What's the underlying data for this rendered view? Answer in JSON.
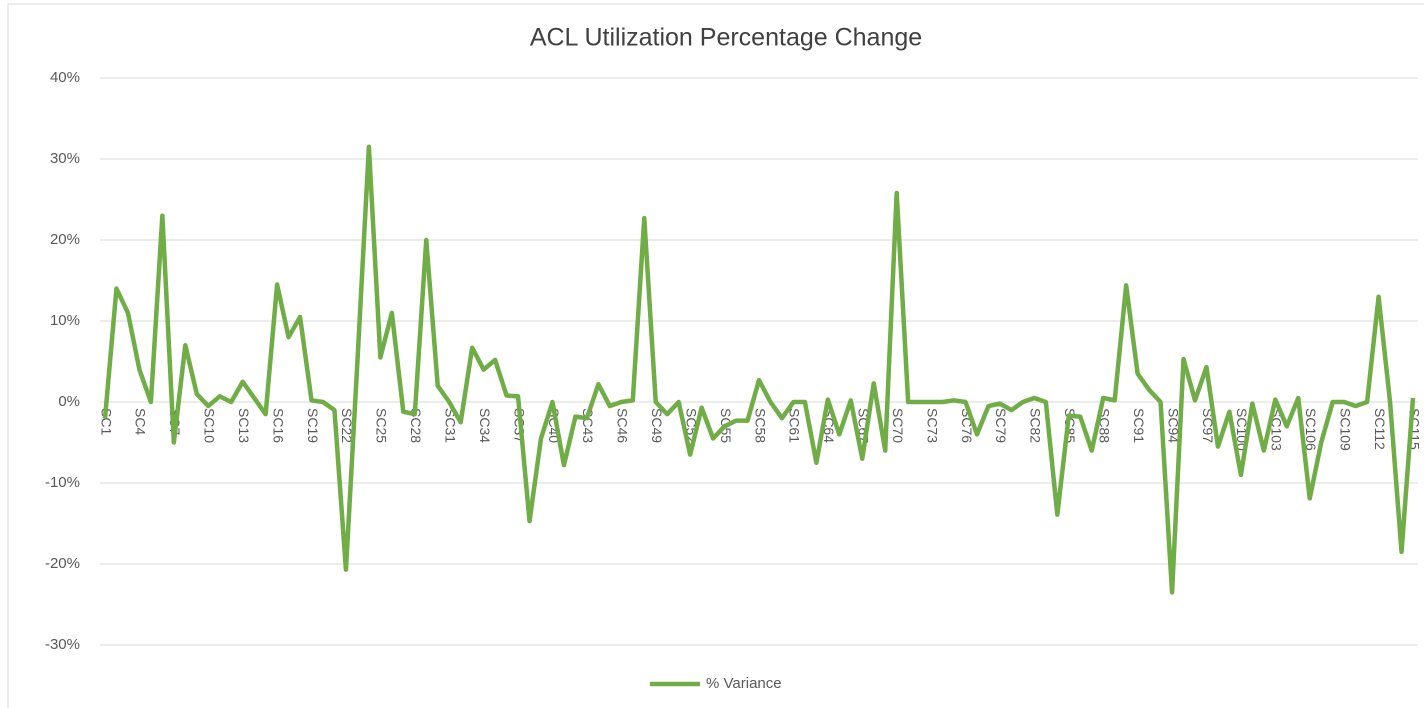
{
  "chart_data": {
    "type": "line",
    "title": "ACL Utilization Percentage Change",
    "categories": [
      "SC1",
      null,
      null,
      "SC4",
      null,
      null,
      "SC7",
      null,
      null,
      "SC10",
      null,
      null,
      "SC13",
      null,
      null,
      "SC16",
      null,
      null,
      "SC19",
      null,
      null,
      "SC22",
      null,
      null,
      "SC25",
      null,
      null,
      "SC28",
      null,
      null,
      "SC31",
      null,
      null,
      "SC34",
      null,
      null,
      "SC37",
      null,
      null,
      "SC40",
      null,
      null,
      "SC43",
      null,
      null,
      "SC46",
      null,
      null,
      "SC49",
      null,
      null,
      "SC52",
      null,
      null,
      "SC55",
      null,
      null,
      "SC58",
      null,
      null,
      "SC61",
      null,
      null,
      "SC64",
      null,
      null,
      "SC67",
      null,
      null,
      "SC70",
      null,
      null,
      "SC73",
      null,
      null,
      "SC76",
      null,
      null,
      "SC79",
      null,
      null,
      "SC82",
      null,
      null,
      "SC85",
      null,
      null,
      "SC88",
      null,
      null,
      "SC91",
      null,
      null,
      "SC94",
      null,
      null,
      "SC97",
      null,
      null,
      "SC100",
      null,
      null,
      "SC103",
      null,
      null,
      "SC106",
      null,
      null,
      "SC109",
      null,
      null,
      "SC112",
      null,
      null,
      "SC115"
    ],
    "series": [
      {
        "name": "% Variance",
        "color": "#70ad47",
        "values": [
          -2,
          14,
          11,
          4,
          0,
          23,
          -5,
          7,
          1,
          -0.5,
          0.7,
          0,
          2.5,
          0.5,
          -1.5,
          14.5,
          8,
          10.5,
          0.2,
          0,
          -1,
          -20.7,
          5,
          31.5,
          5.5,
          11,
          -1.2,
          -1.5,
          20,
          2,
          0,
          -2.5,
          6.7,
          4,
          5.2,
          0.8,
          0.7,
          -14.7,
          -4.5,
          0,
          -7.8,
          -1.8,
          -2,
          2.2,
          -0.5,
          0,
          0.2,
          22.7,
          0,
          -1.5,
          0,
          -6.5,
          -0.7,
          -4.5,
          -3,
          -2.3,
          -2.3,
          2.7,
          0,
          -2,
          0,
          0,
          -7.5,
          0.3,
          -4,
          0.2,
          -7,
          2.3,
          -6,
          25.8,
          0,
          0,
          0,
          0,
          0.2,
          0,
          -4,
          -0.5,
          -0.2,
          -1,
          0,
          0.5,
          0,
          -13.9,
          -1.7,
          -1.8,
          -6,
          0.5,
          0.2,
          14.4,
          3.5,
          1.5,
          0,
          -23.5,
          5.3,
          0.2,
          4.3,
          -5.5,
          -1.2,
          -9,
          -0.2,
          -6,
          0.3,
          -3,
          0.5,
          -11.9,
          -5,
          0,
          0,
          -0.5,
          0,
          13,
          0,
          -18.5,
          0.5
        ]
      }
    ],
    "ylim": [
      -30,
      40
    ],
    "yticks": [
      {
        "value": -30,
        "label": "-30%"
      },
      {
        "value": -20,
        "label": "-20%"
      },
      {
        "value": -10,
        "label": "-10%"
      },
      {
        "value": 0,
        "label": "0%"
      },
      {
        "value": 10,
        "label": "10%"
      },
      {
        "value": 20,
        "label": "20%"
      },
      {
        "value": 30,
        "label": "30%"
      },
      {
        "value": 40,
        "label": "40%"
      }
    ],
    "grid": true,
    "legend": "bottom"
  }
}
